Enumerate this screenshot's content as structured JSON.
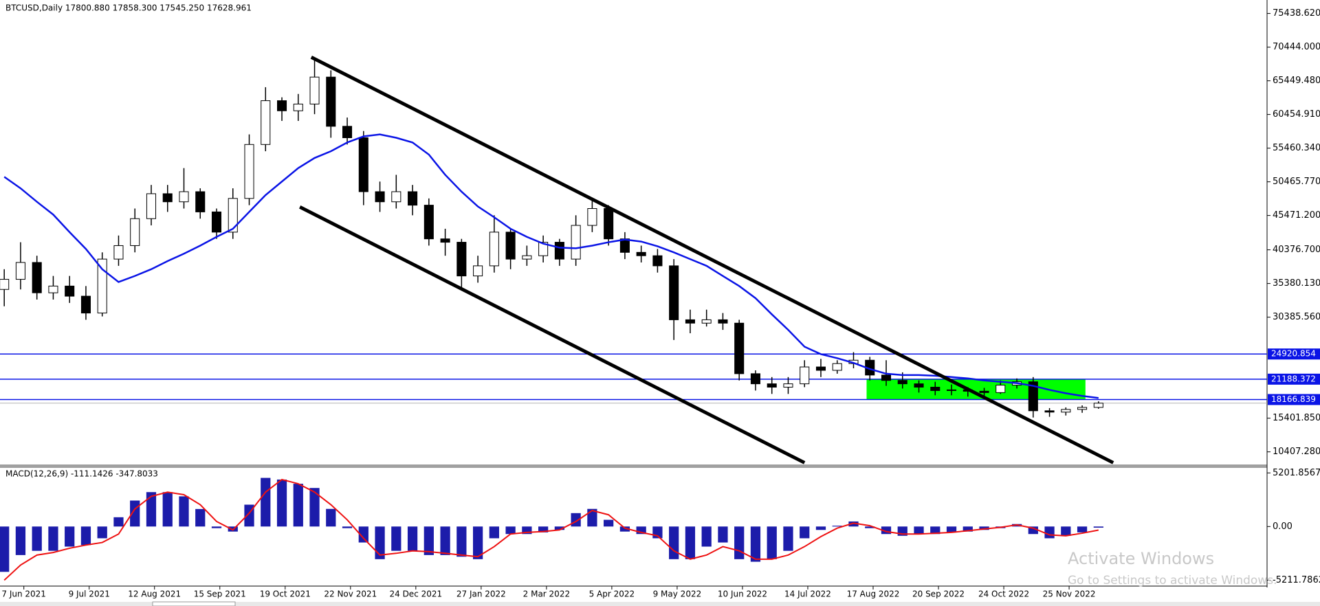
{
  "chart_data": [
    {
      "type": "candlestick",
      "title": "BTCUSD,Daily  17800.880 17858.300 17545.250 17628.961",
      "xlim": [
        -0.26,
        77.32
      ],
      "xticks": [
        {
          "value": 1.2,
          "label": "7 Jun 2021"
        },
        {
          "value": 5.2,
          "label": "9 Jul 2021"
        },
        {
          "value": 9.2,
          "label": "12 Aug 2021"
        },
        {
          "value": 13.2,
          "label": "15 Sep 2021"
        },
        {
          "value": 17.2,
          "label": "19 Oct 2021"
        },
        {
          "value": 21.2,
          "label": "22 Nov 2021"
        },
        {
          "value": 25.2,
          "label": "24 Dec 2021"
        },
        {
          "value": 29.2,
          "label": "27 Jan 2022"
        },
        {
          "value": 33.2,
          "label": "2 Mar 2022"
        },
        {
          "value": 37.2,
          "label": "5 Apr 2022"
        },
        {
          "value": 41.2,
          "label": "9 May 2022"
        },
        {
          "value": 45.2,
          "label": "10 Jun 2022"
        },
        {
          "value": 49.2,
          "label": "14 Jul 2022"
        },
        {
          "value": 53.2,
          "label": "17 Aug 2022"
        },
        {
          "value": 57.2,
          "label": "20 Sep 2022"
        },
        {
          "value": 61.2,
          "label": "24 Oct 2022"
        },
        {
          "value": 65.2,
          "label": "25 Nov 2022"
        }
      ],
      "ylim": [
        8535,
        77435
      ],
      "yticks": [
        {
          "value": 75438.62,
          "label": "75438.620"
        },
        {
          "value": 70444,
          "label": "70444.000"
        },
        {
          "value": 65449.48,
          "label": "65449.480"
        },
        {
          "value": 60454.91,
          "label": "60454.910"
        },
        {
          "value": 55460.34,
          "label": "55460.340"
        },
        {
          "value": 50465.77,
          "label": "50465.770"
        },
        {
          "value": 45471.2,
          "label": "45471.200"
        },
        {
          "value": 40376.7,
          "label": "40376.700"
        },
        {
          "value": 35380.13,
          "label": "35380.130"
        },
        {
          "value": 30385.56,
          "label": "30385.560"
        },
        {
          "value": 15401.85,
          "label": "15401.850"
        },
        {
          "value": 10407.28,
          "label": "10407.280"
        }
      ],
      "open": [
        34500,
        36000,
        38500,
        34000,
        35000,
        33500,
        31000,
        39000,
        41000,
        45000,
        48700,
        47500,
        49000,
        46000,
        43000,
        48000,
        56000,
        62500,
        61000,
        62000,
        66000,
        58700,
        57000,
        49000,
        47500,
        49000,
        47000,
        42000,
        41500,
        36500,
        38000,
        43000,
        39000,
        39500,
        41500,
        39000,
        44000,
        46500,
        42000,
        40000,
        39500,
        38000,
        30000,
        29500,
        30000,
        29500,
        22000,
        20500,
        20000,
        20500,
        23000,
        22500,
        23500,
        24000,
        21800,
        21000,
        20500,
        20000,
        19500,
        19600,
        19400,
        19200,
        20300,
        20800,
        16500,
        16300,
        16700,
        17000
      ],
      "high": [
        37500,
        41500,
        39500,
        36500,
        36500,
        35000,
        40000,
        42500,
        46500,
        50000,
        50000,
        52500,
        49500,
        46500,
        49500,
        57500,
        64500,
        63000,
        63500,
        68900,
        67000,
        60000,
        58000,
        50500,
        51500,
        50000,
        48000,
        43500,
        42000,
        39500,
        45500,
        43500,
        41000,
        42500,
        42000,
        45500,
        48000,
        47000,
        43000,
        41000,
        40500,
        39000,
        31500,
        31500,
        31000,
        30000,
        22500,
        21500,
        21500,
        24000,
        24200,
        24000,
        25200,
        24500,
        24000,
        22200,
        21000,
        20800,
        20400,
        20000,
        19900,
        21000,
        21300,
        21500,
        16900,
        17000,
        17300,
        17900
      ],
      "low": [
        32000,
        34500,
        33000,
        33000,
        32500,
        30000,
        30500,
        38000,
        40000,
        44000,
        46000,
        46500,
        45000,
        42000,
        42000,
        47000,
        55000,
        59500,
        59500,
        60500,
        57000,
        56000,
        47000,
        46000,
        46500,
        45500,
        41000,
        39500,
        34500,
        35500,
        37000,
        37500,
        38000,
        38500,
        38000,
        38000,
        43000,
        41000,
        39000,
        38500,
        37000,
        27000,
        28000,
        29000,
        28500,
        21000,
        19500,
        19000,
        19000,
        20000,
        21500,
        22000,
        22800,
        21000,
        20200,
        19800,
        19200,
        18800,
        18800,
        18600,
        18500,
        19000,
        19800,
        15500,
        15600,
        15800,
        16200,
        16800
      ],
      "close": [
        36000,
        38500,
        34000,
        35000,
        33500,
        31000,
        39000,
        41000,
        45000,
        48700,
        47500,
        49000,
        46000,
        43000,
        48000,
        56000,
        62500,
        61000,
        62000,
        66000,
        58700,
        57000,
        49000,
        47500,
        49000,
        47000,
        42000,
        41500,
        36500,
        38000,
        43000,
        39000,
        39500,
        41500,
        39000,
        44000,
        46500,
        42000,
        40000,
        39500,
        38000,
        30000,
        29500,
        30000,
        29500,
        22000,
        20500,
        20000,
        20500,
        23000,
        22500,
        23500,
        24000,
        21800,
        21000,
        20500,
        20000,
        19500,
        19600,
        19400,
        19200,
        20300,
        20800,
        16500,
        16300,
        16700,
        17000,
        17628.961
      ],
      "ma": {
        "color": "#0a14e6",
        "values": [
          51200,
          49500,
          47500,
          45600,
          43000,
          40500,
          37500,
          35600,
          36500,
          37500,
          38700,
          39800,
          41000,
          42300,
          43500,
          46000,
          48500,
          50500,
          52500,
          54000,
          55000,
          56300,
          57200,
          57500,
          57000,
          56300,
          54500,
          51500,
          49000,
          46800,
          45200,
          43500,
          42300,
          41300,
          40700,
          40600,
          41000,
          41500,
          41900,
          41600,
          40900,
          40000,
          39000,
          38000,
          36500,
          35000,
          33200,
          30800,
          28500,
          26000,
          24900,
          24300,
          23600,
          22700,
          22000,
          21800,
          21800,
          21700,
          21500,
          21300,
          21000,
          20800,
          20600,
          20200,
          19600,
          19100,
          18700,
          18400
        ]
      },
      "hlines": {
        "color": "#0a14e6",
        "values": [
          24920.854,
          21188.372,
          18166.839
        ]
      },
      "trendlines": [
        {
          "x": [
            18.8,
            67.9
          ],
          "y": [
            68950,
            8795
          ]
        },
        {
          "x": [
            18.1,
            49.0
          ],
          "y": [
            46734,
            8795
          ]
        }
      ],
      "zone": {
        "color": "#00ff00",
        "x": [
          52.8,
          66.2
        ],
        "y": [
          21188.372,
          18166.839
        ]
      }
    },
    {
      "type": "macd",
      "title": "MACD(12,26,9) -111.1426 -347.8033",
      "ylim": [
        -5781,
        5690
      ],
      "yticks": [
        5201.8567,
        {
          "value": 0,
          "label": "0.00"
        },
        -5211.7862
      ],
      "histogram": {
        "color": "#1c1caa",
        "values": [
          -4400,
          -2770,
          -2360,
          -2360,
          -1950,
          -1800,
          -1140,
          900,
          2520,
          3340,
          3340,
          2930,
          1700,
          -160,
          -490,
          2120,
          4720,
          4560,
          4150,
          3740,
          1710,
          -160,
          -1550,
          -3170,
          -2360,
          -2360,
          -2770,
          -2770,
          -2930,
          -3170,
          -1140,
          -730,
          -730,
          -570,
          -330,
          1300,
          1710,
          650,
          -490,
          -730,
          -1140,
          -3170,
          -3170,
          -1950,
          -1550,
          -3170,
          -3420,
          -3170,
          -2360,
          -1140,
          -330,
          80,
          490,
          -160,
          -730,
          -900,
          -730,
          -730,
          -570,
          -490,
          -330,
          -160,
          240,
          -730,
          -1140,
          -900,
          -570,
          -111.1426
        ]
      },
      "signal": {
        "color": "#ee1111",
        "values": [
          -5210,
          -3740,
          -2770,
          -2520,
          -2110,
          -1800,
          -1550,
          -730,
          1710,
          2930,
          3340,
          3090,
          2120,
          490,
          -330,
          1300,
          3340,
          4560,
          4150,
          3340,
          2120,
          650,
          -1140,
          -2770,
          -2600,
          -2360,
          -2440,
          -2600,
          -2770,
          -2930,
          -1950,
          -730,
          -570,
          -490,
          -330,
          490,
          1550,
          1140,
          -160,
          -570,
          -900,
          -2360,
          -3170,
          -2770,
          -1950,
          -2360,
          -3170,
          -3170,
          -2770,
          -1950,
          -980,
          -160,
          330,
          80,
          -490,
          -730,
          -730,
          -650,
          -570,
          -410,
          -240,
          -80,
          160,
          -160,
          -810,
          -900,
          -650,
          -347.8033
        ]
      }
    }
  ],
  "watermark": {
    "title": "Activate Windows",
    "subtitle": "Go to Settings to activate Windows."
  }
}
